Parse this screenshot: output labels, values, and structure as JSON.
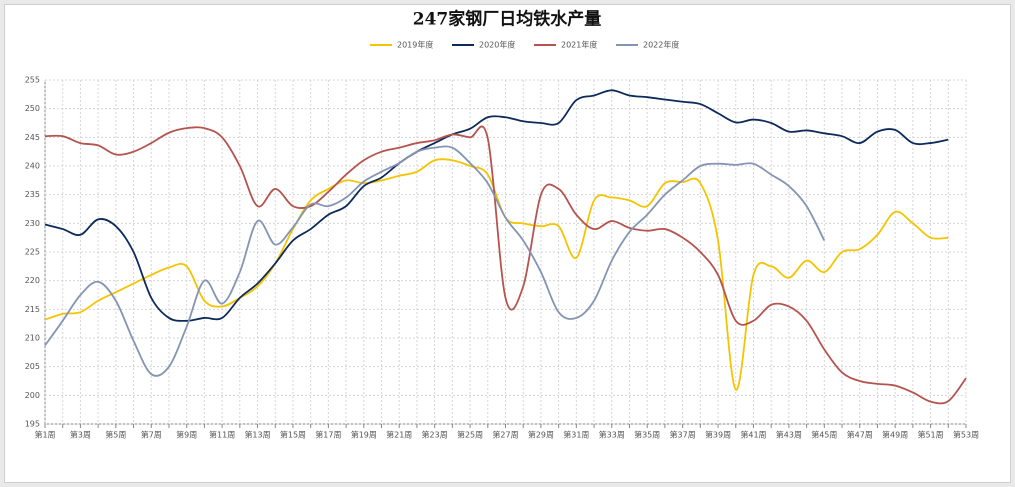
{
  "chart_data": {
    "type": "line",
    "title": "247家钢厂日均铁水产量",
    "categories": [
      "第1周",
      null,
      "第3周",
      null,
      "第5周",
      null,
      "第7周",
      null,
      "第9周",
      null,
      "第11周",
      null,
      "第13周",
      null,
      "第15周",
      null,
      "第17周",
      null,
      "第19周",
      null,
      "第21周",
      null,
      "第23周",
      null,
      "第25周",
      null,
      "第27周",
      null,
      "第29周",
      null,
      "第31周",
      null,
      "第33周",
      null,
      "第35周",
      null,
      "第37周",
      null,
      "第39周",
      null,
      "第41周",
      null,
      "第43周",
      null,
      "第45周",
      null,
      "第47周",
      null,
      "第49周",
      null,
      "第51周",
      null,
      "第53周"
    ],
    "series": [
      {
        "name": "2019年度",
        "color": "#f5c400",
        "values": [
          213.2,
          214.2,
          214.5,
          216.5,
          218,
          219.5,
          221,
          222.3,
          222.5,
          216.5,
          215.5,
          217,
          219,
          223,
          229,
          234,
          236,
          237.5,
          237,
          237.5,
          238.3,
          239,
          241,
          241,
          240,
          238.5,
          231,
          230,
          229.5,
          229.5,
          224,
          234,
          234.5,
          234,
          233,
          237,
          237.2,
          237,
          227,
          201,
          221,
          222.5,
          220.5,
          223.5,
          221.5,
          225,
          225.5,
          228,
          232,
          230,
          227.5,
          227.5,
          null
        ]
      },
      {
        "name": "2020年度",
        "color": "#0d2a5c",
        "values": [
          229.8,
          229,
          228,
          230.7,
          229.5,
          225,
          217,
          213.5,
          213,
          213.5,
          213.5,
          217,
          219.5,
          223,
          227,
          229,
          231.5,
          233,
          236.5,
          238,
          240.5,
          242.5,
          244,
          245.5,
          246.5,
          248.5,
          248.5,
          247.8,
          247.5,
          247.5,
          251.5,
          252.3,
          253.2,
          252.3,
          252,
          251.6,
          251.2,
          250.8,
          249.2,
          247.6,
          248.1,
          247.5,
          246,
          246.2,
          245.7,
          245.2,
          244,
          246,
          246.3,
          244,
          244,
          244.6,
          null
        ]
      },
      {
        "name": "2021年度",
        "color": "#b5544e",
        "values": [
          245.2,
          245.2,
          244,
          243.6,
          242,
          242.5,
          244,
          245.8,
          246.6,
          246.6,
          245,
          240,
          233,
          236,
          233,
          233,
          235.5,
          238.5,
          241,
          242.5,
          243.2,
          244,
          244.5,
          245.5,
          245,
          244.8,
          217,
          219,
          235,
          236,
          231.5,
          229,
          230.4,
          229.2,
          228.7,
          229,
          227.5,
          225,
          221,
          213,
          213,
          215.8,
          215.5,
          213,
          208,
          204,
          202.5,
          202,
          201.7,
          200.5,
          198.9,
          199,
          203
        ]
      },
      {
        "name": "2022年度",
        "color": "#8494b4",
        "values": [
          208.7,
          213,
          217.5,
          219.8,
          216.5,
          209.5,
          203.7,
          205,
          212,
          220,
          216,
          221.5,
          230.4,
          226.3,
          229.3,
          233.3,
          233,
          234.5,
          237.3,
          239,
          240.5,
          242.5,
          243.2,
          243.2,
          240.5,
          237,
          231,
          227,
          221.5,
          214.5,
          213.5,
          216.5,
          223.5,
          228.5,
          231.5,
          235,
          237.5,
          240,
          240.4,
          240.2,
          240.4,
          238.5,
          236.5,
          233,
          227,
          null,
          null,
          null,
          null,
          null,
          null,
          null,
          null
        ]
      }
    ],
    "ylim": [
      195,
      255
    ],
    "yticks": [
      195,
      200,
      205,
      210,
      215,
      220,
      225,
      230,
      235,
      240,
      245,
      250,
      255
    ],
    "grid": true
  }
}
